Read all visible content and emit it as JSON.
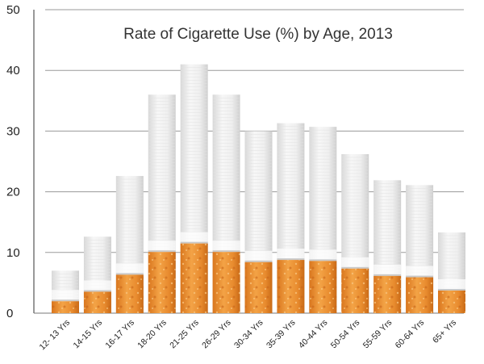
{
  "chart_data": {
    "type": "bar",
    "title": "Rate of Cigarette Use (%) by Age, 2013",
    "xlabel": "",
    "ylabel": "",
    "ylim": [
      0,
      50
    ],
    "yticks": [
      "0",
      "10",
      "20",
      "30",
      "40",
      "50"
    ],
    "grid": true,
    "categories": [
      "12- 13 Yrs",
      "14-15 Yrs",
      "16-17 Yrs",
      "18-20 Yrs",
      "21-25 Yrs",
      "26-29 Yrs",
      "30-34 Yrs",
      "35-39 Yrs",
      "40-44 Yrs",
      "50-54 Yrs",
      "55-59 Yrs",
      "60-64 Yrs",
      "65+ Yrs"
    ],
    "values": [
      7,
      12.6,
      22.6,
      36,
      41,
      36,
      30,
      31.3,
      30.7,
      26.2,
      21.9,
      21.1,
      13.3
    ],
    "colors": {
      "paper": "#f2f2f2",
      "paper_shade": "#d9d9d9",
      "filter": "#e58a2c",
      "filter_light": "#f0a850",
      "band": "#c9c9c9",
      "grid": "#9a9a9a"
    }
  }
}
